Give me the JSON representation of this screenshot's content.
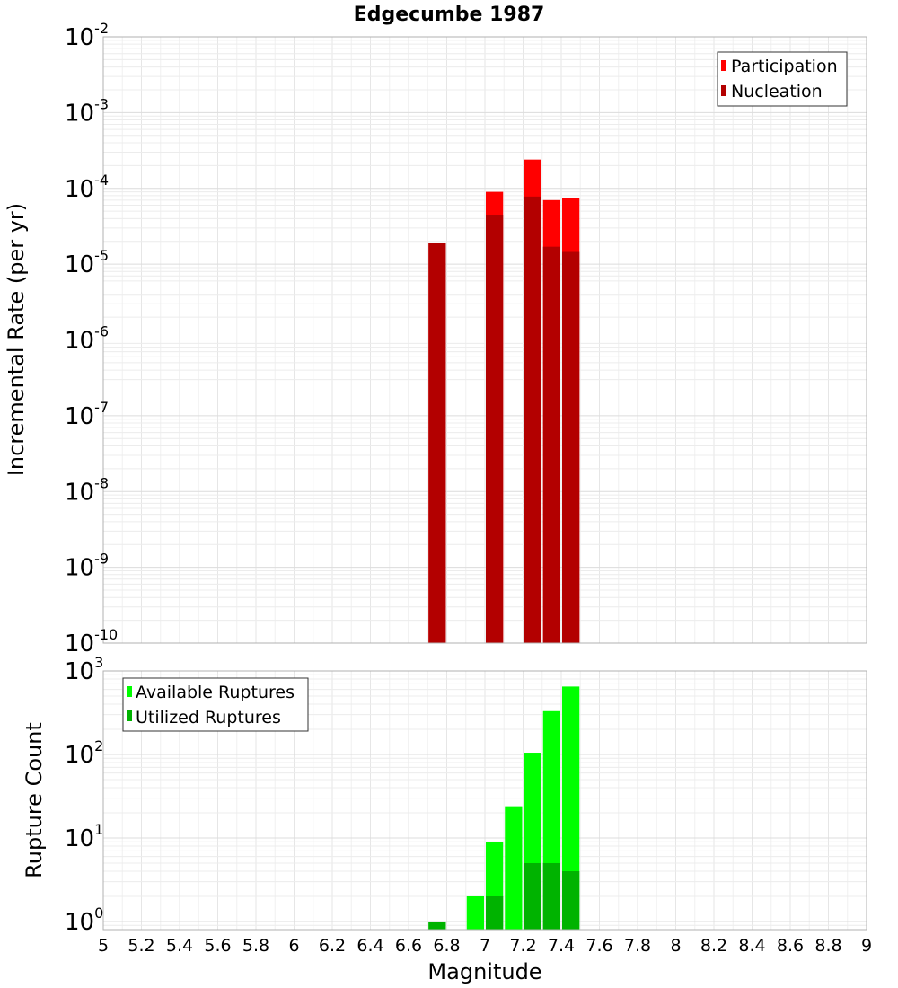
{
  "chart_data": [
    {
      "type": "bar",
      "title": "Edgecumbe 1987",
      "xlabel": "Magnitude",
      "ylabel": "Incremental Rate (per yr)",
      "yscale": "log",
      "ylim": [
        1e-10,
        0.01
      ],
      "xlim": [
        5,
        9
      ],
      "grid": true,
      "legend_position": "top-right",
      "series": [
        {
          "name": "Participation",
          "color": "#ff0000",
          "x": [
            6.75,
            7.05,
            7.25,
            7.35,
            7.45
          ],
          "values": [
            1.9e-05,
            9e-05,
            0.00024,
            7e-05,
            7.5e-05
          ]
        },
        {
          "name": "Nucleation",
          "color": "#b30000",
          "x": [
            6.75,
            7.05,
            7.25,
            7.35,
            7.45
          ],
          "values": [
            1.9e-05,
            4.5e-05,
            7.8e-05,
            1.7e-05,
            1.45e-05
          ]
        }
      ],
      "ytick_exponents": [
        -10,
        -9,
        -8,
        -7,
        -6,
        -5,
        -4,
        -3,
        -2
      ]
    },
    {
      "type": "bar",
      "title": "",
      "xlabel": "Magnitude",
      "ylabel": "Rupture Count",
      "yscale": "log",
      "ylim": [
        0.8,
        1000
      ],
      "xlim": [
        5,
        9
      ],
      "grid": true,
      "legend_position": "top-left",
      "series": [
        {
          "name": "Available Ruptures",
          "color": "#00ff00",
          "x": [
            6.75,
            6.95,
            7.05,
            7.15,
            7.25,
            7.35,
            7.45
          ],
          "values": [
            1,
            2,
            9,
            24,
            105,
            330,
            650
          ]
        },
        {
          "name": "Utilized Ruptures",
          "color": "#00b300",
          "x": [
            6.75,
            6.95,
            7.05,
            7.15,
            7.25,
            7.35,
            7.45
          ],
          "values": [
            1,
            0,
            2,
            0,
            5,
            5,
            4
          ]
        }
      ],
      "ytick_exponents": [
        0,
        1,
        2,
        3
      ]
    }
  ],
  "x_ticks": [
    "5",
    "5.2",
    "5.4",
    "5.6",
    "5.8",
    "6",
    "6.2",
    "6.4",
    "6.6",
    "6.8",
    "7",
    "7.2",
    "7.4",
    "7.6",
    "7.8",
    "8",
    "8.2",
    "8.4",
    "8.6",
    "8.8",
    "9"
  ],
  "exp_base": "10"
}
